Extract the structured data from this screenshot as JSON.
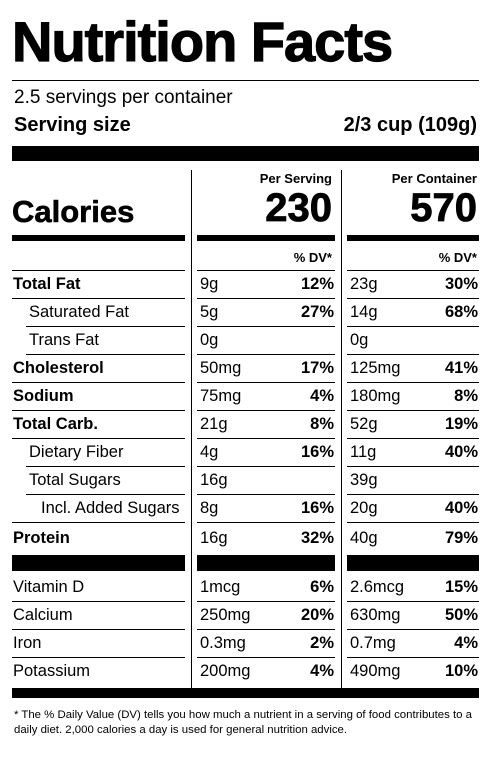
{
  "label": {
    "title": "Nutrition Facts",
    "servings_per_container": "2.5 servings per container",
    "serving_size_label": "Serving size",
    "serving_size_value": "2/3 cup (109g)",
    "per_serving_header": "Per Serving",
    "per_container_header": "Per Container",
    "calories_label": "Calories",
    "calories_per_serving": "230",
    "calories_per_container": "570",
    "dv_header": "% DV*",
    "nutrients": [
      {
        "name": "Total Fat",
        "bold": true,
        "indent": 0,
        "serving_amt": "9g",
        "serving_dv": "12%",
        "container_amt": "23g",
        "container_dv": "30%"
      },
      {
        "name": "Saturated Fat",
        "bold": false,
        "indent": 1,
        "serving_amt": "5g",
        "serving_dv": "27%",
        "container_amt": "14g",
        "container_dv": "68%"
      },
      {
        "name": "Trans Fat",
        "bold": false,
        "indent": 1,
        "serving_amt": "0g",
        "serving_dv": "",
        "container_amt": "0g",
        "container_dv": ""
      },
      {
        "name": "Cholesterol",
        "bold": true,
        "indent": 0,
        "serving_amt": "50mg",
        "serving_dv": "17%",
        "container_amt": "125mg",
        "container_dv": "41%"
      },
      {
        "name": "Sodium",
        "bold": true,
        "indent": 0,
        "serving_amt": "75mg",
        "serving_dv": "4%",
        "container_amt": "180mg",
        "container_dv": "8%"
      },
      {
        "name": "Total Carb.",
        "bold": true,
        "indent": 0,
        "serving_amt": "21g",
        "serving_dv": "8%",
        "container_amt": "52g",
        "container_dv": "19%"
      },
      {
        "name": "Dietary Fiber",
        "bold": false,
        "indent": 1,
        "serving_amt": "4g",
        "serving_dv": "16%",
        "container_amt": "11g",
        "container_dv": "40%"
      },
      {
        "name": "Total Sugars",
        "bold": false,
        "indent": 1,
        "serving_amt": "16g",
        "serving_dv": "",
        "container_amt": "39g",
        "container_dv": ""
      },
      {
        "name": "Incl. Added Sugars",
        "bold": false,
        "indent": 2,
        "serving_amt": "8g",
        "serving_dv": "16%",
        "container_amt": "20g",
        "container_dv": "40%"
      },
      {
        "name": "Protein",
        "bold": true,
        "indent": 0,
        "serving_amt": "16g",
        "serving_dv": "32%",
        "container_amt": "40g",
        "container_dv": "79%"
      }
    ],
    "vitamins": [
      {
        "name": "Vitamin D",
        "serving_amt": "1mcg",
        "serving_dv": "6%",
        "container_amt": "2.6mcg",
        "container_dv": "15%"
      },
      {
        "name": "Calcium",
        "serving_amt": "250mg",
        "serving_dv": "20%",
        "container_amt": "630mg",
        "container_dv": "50%"
      },
      {
        "name": "Iron",
        "serving_amt": "0.3mg",
        "serving_dv": "2%",
        "container_amt": "0.7mg",
        "container_dv": "4%"
      },
      {
        "name": "Potassium",
        "serving_amt": "200mg",
        "serving_dv": "4%",
        "container_amt": "490mg",
        "container_dv": "10%"
      }
    ],
    "footnote": "* The % Daily Value (DV) tells you how much a nutrient in a serving of food contributes to a daily diet. 2,000 calories a day is used for general nutrition advice."
  }
}
